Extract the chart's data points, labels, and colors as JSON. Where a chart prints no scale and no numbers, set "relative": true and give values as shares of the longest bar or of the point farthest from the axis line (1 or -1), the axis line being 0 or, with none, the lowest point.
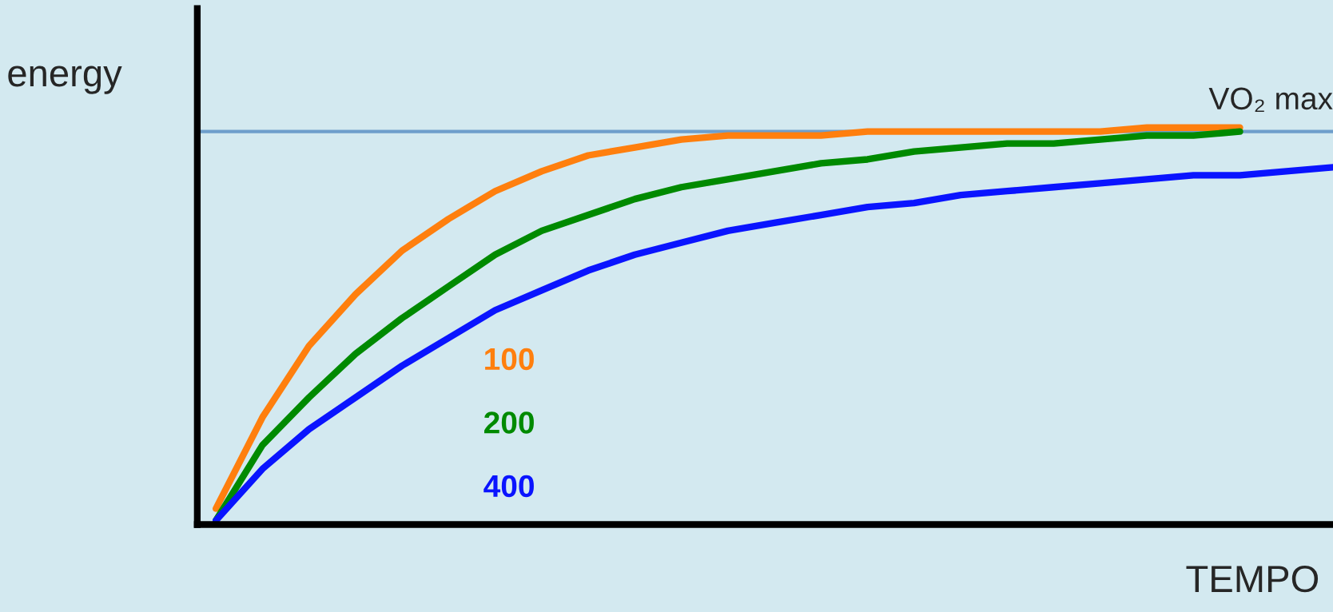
{
  "chart_data": {
    "type": "line",
    "relative": true,
    "xlabel": "TEMPO",
    "ylabel": "energy",
    "categories": [
      null,
      null,
      null,
      null,
      null,
      null,
      null,
      null,
      null,
      null,
      null,
      null,
      null,
      null,
      null,
      null,
      null,
      null,
      null,
      null,
      null,
      null,
      null,
      null,
      null
    ],
    "series": [
      {
        "name": "100",
        "color": "#ff7f0e",
        "values": [
          0.04,
          0.27,
          0.45,
          0.58,
          0.69,
          0.77,
          0.84,
          0.89,
          0.93,
          0.95,
          0.97,
          0.98,
          0.98,
          0.98,
          0.99,
          0.99,
          0.99,
          0.99,
          0.99,
          0.99,
          1.0,
          1.0,
          1.0,
          null,
          null
        ]
      },
      {
        "name": "200",
        "color": "#008a00",
        "values": [
          0.01,
          0.2,
          0.32,
          0.43,
          0.52,
          0.6,
          0.68,
          0.74,
          0.78,
          0.82,
          0.85,
          0.87,
          0.89,
          0.91,
          0.92,
          0.94,
          0.95,
          0.96,
          0.96,
          0.97,
          0.98,
          0.98,
          0.99,
          null,
          null
        ]
      },
      {
        "name": "400",
        "color": "#0a14ff",
        "values": [
          0.01,
          0.14,
          0.24,
          0.32,
          0.4,
          0.47,
          0.54,
          0.59,
          0.64,
          0.68,
          0.71,
          0.74,
          0.76,
          0.78,
          0.8,
          0.81,
          0.83,
          0.84,
          0.85,
          0.86,
          0.87,
          0.88,
          0.88,
          0.89,
          0.9
        ]
      }
    ],
    "ref_lines": [
      {
        "axis": "y",
        "value": 0.99,
        "label": "VO₂ max",
        "color": "#6e9ecb"
      }
    ],
    "grid": false,
    "line_style": "solid"
  }
}
